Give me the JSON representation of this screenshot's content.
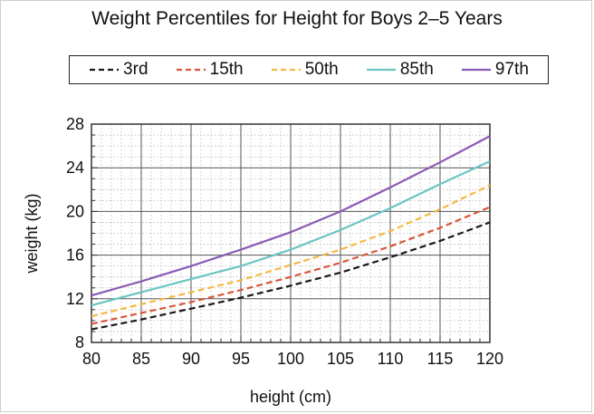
{
  "chart_data": {
    "type": "line",
    "title": "Weight Percentiles for Height for Boys 2–5 Years",
    "xlabel": "height (cm)",
    "ylabel": "weight (kg)",
    "xlim": [
      80,
      120
    ],
    "ylim": [
      8,
      28
    ],
    "xticks": [
      80,
      85,
      90,
      95,
      100,
      105,
      110,
      115,
      120
    ],
    "yticks": [
      8,
      12,
      16,
      20,
      24,
      28
    ],
    "grid": true,
    "legend_position": "top",
    "x": [
      80,
      85,
      90,
      95,
      100,
      105,
      110,
      115,
      120
    ],
    "series": [
      {
        "name": "3rd",
        "style": "dashed",
        "color": "#1a1a1a",
        "values": [
          9.2,
          10.1,
          11.1,
          12.1,
          13.2,
          14.4,
          15.8,
          17.3,
          19.0
        ]
      },
      {
        "name": "15th",
        "style": "dashed",
        "color": "#d9573a",
        "values": [
          9.7,
          10.7,
          11.7,
          12.8,
          14.0,
          15.3,
          16.8,
          18.5,
          20.4
        ]
      },
      {
        "name": "50th",
        "style": "dashed",
        "color": "#f5b942",
        "values": [
          10.4,
          11.5,
          12.6,
          13.7,
          15.1,
          16.5,
          18.2,
          20.2,
          22.4
        ]
      },
      {
        "name": "85th",
        "style": "solid",
        "color": "#6cc5c2",
        "values": [
          11.4,
          12.6,
          13.8,
          15.0,
          16.5,
          18.3,
          20.3,
          22.5,
          24.6
        ]
      },
      {
        "name": "97th",
        "style": "solid",
        "color": "#8a5bb5",
        "values": [
          12.3,
          13.6,
          15.0,
          16.5,
          18.1,
          20.0,
          22.2,
          24.5,
          26.9
        ]
      }
    ]
  }
}
